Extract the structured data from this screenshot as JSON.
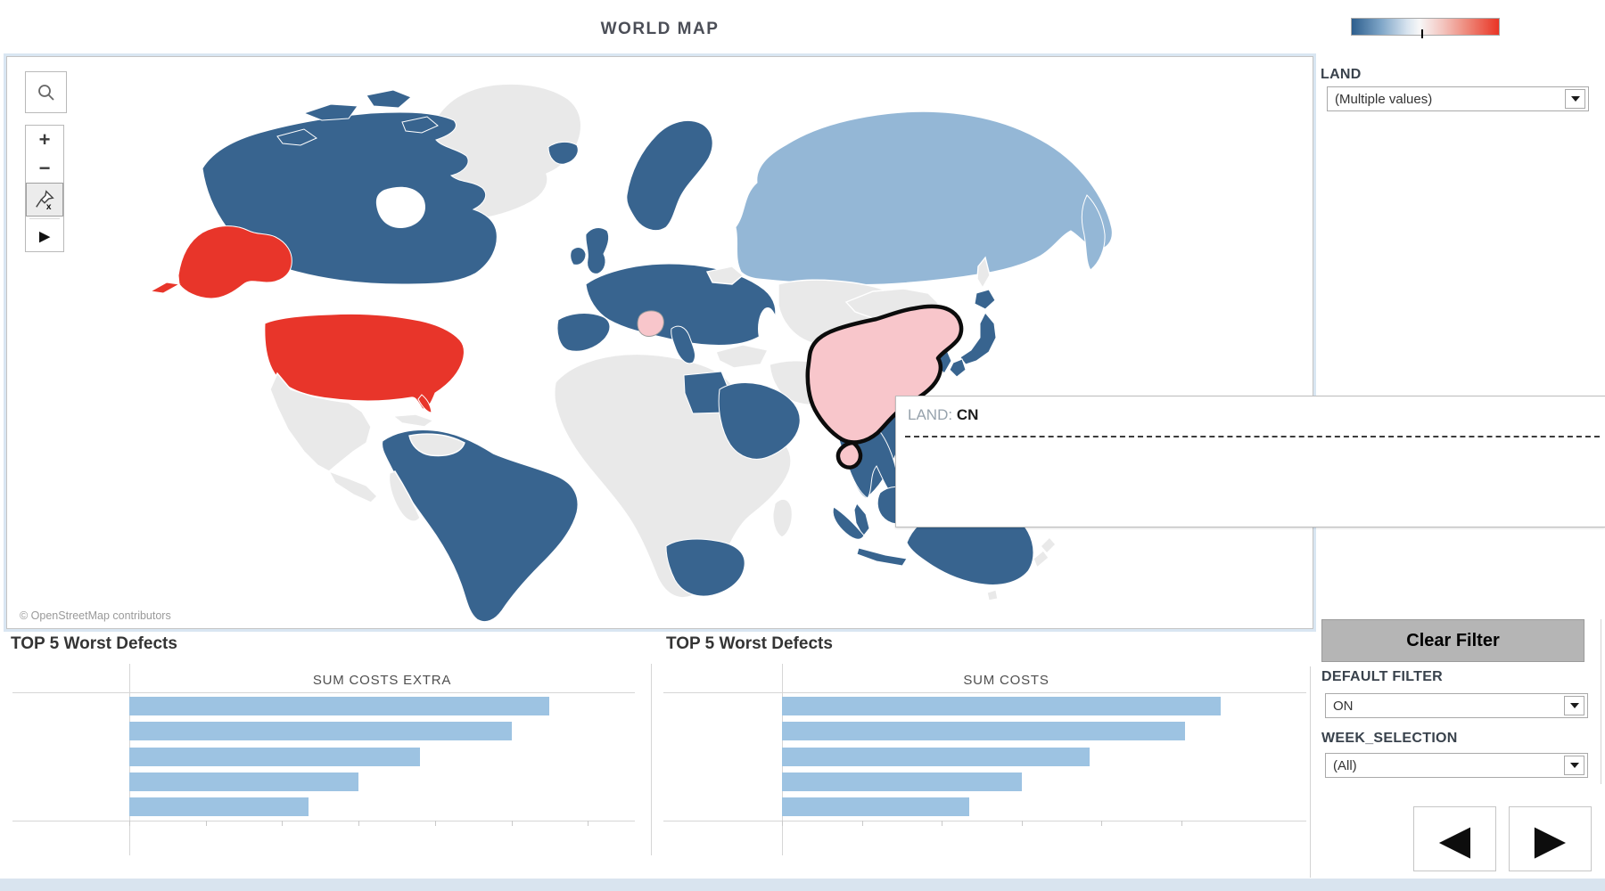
{
  "colors": {
    "accent": "#d9e6f2",
    "map-hi": "#38648f",
    "map-lo": "#94b7d6",
    "map-red": "#e8352a",
    "map-pink": "#f8c6cb",
    "map-nd": "#e9e9e9",
    "bar-blue": "#9dc3e2",
    "btn-gray": "#b5b5b5",
    "strip": "#d9e4ef",
    "legend-left": "#2d5e8d",
    "legend-right": "#e93425"
  },
  "header": {
    "title": "WORLD MAP"
  },
  "legend": {
    "marker_pct": 47
  },
  "map": {
    "attribution": "© OpenStreetMap contributors",
    "toolbar": {
      "zoom_in": "+",
      "zoom_out": "−",
      "pan": "▶"
    },
    "tooltip": {
      "label": "LAND:",
      "value": "CN"
    },
    "selected_country_code": "CN"
  },
  "filters": {
    "land": {
      "label": "LAND",
      "value": "(Multiple values)"
    },
    "clear_button_label": "Clear Filter",
    "default_filter": {
      "label": "DEFAULT FILTER",
      "value": "ON"
    },
    "week_selection": {
      "label": "WEEK_SELECTION",
      "value": "(All)"
    }
  },
  "navigation": {
    "prev": "◀",
    "next": "▶"
  },
  "chart_data": [
    {
      "type": "bar",
      "orientation": "horizontal",
      "title": "TOP 5 Worst Defects",
      "column_header": "SUM COSTS EXTRA",
      "categories": [
        "",
        "",
        "",
        "",
        ""
      ],
      "values_tick_units": [
        5.5,
        5.0,
        3.8,
        3.0,
        2.35
      ],
      "axis": {
        "tick_count": 7,
        "tick_labels_visible": false
      },
      "row_labels_visible": false,
      "note": "axis tick labels and row labels are not visible in the screenshot; values estimated in unlabeled tick units",
      "bar_color": "#9dc3e2"
    },
    {
      "type": "bar",
      "orientation": "horizontal",
      "title": "TOP 5 Worst Defects",
      "column_header": "SUM COSTS",
      "categories": [
        "",
        "",
        "",
        "",
        ""
      ],
      "values_tick_units": [
        5.5,
        5.05,
        3.85,
        3.0,
        2.35
      ],
      "axis": {
        "tick_count": 6,
        "tick_labels_visible": false
      },
      "row_labels_visible": false,
      "note": "axis tick labels and row labels are not visible in the screenshot; values estimated in unlabeled tick units",
      "bar_color": "#9dc3e2"
    }
  ]
}
